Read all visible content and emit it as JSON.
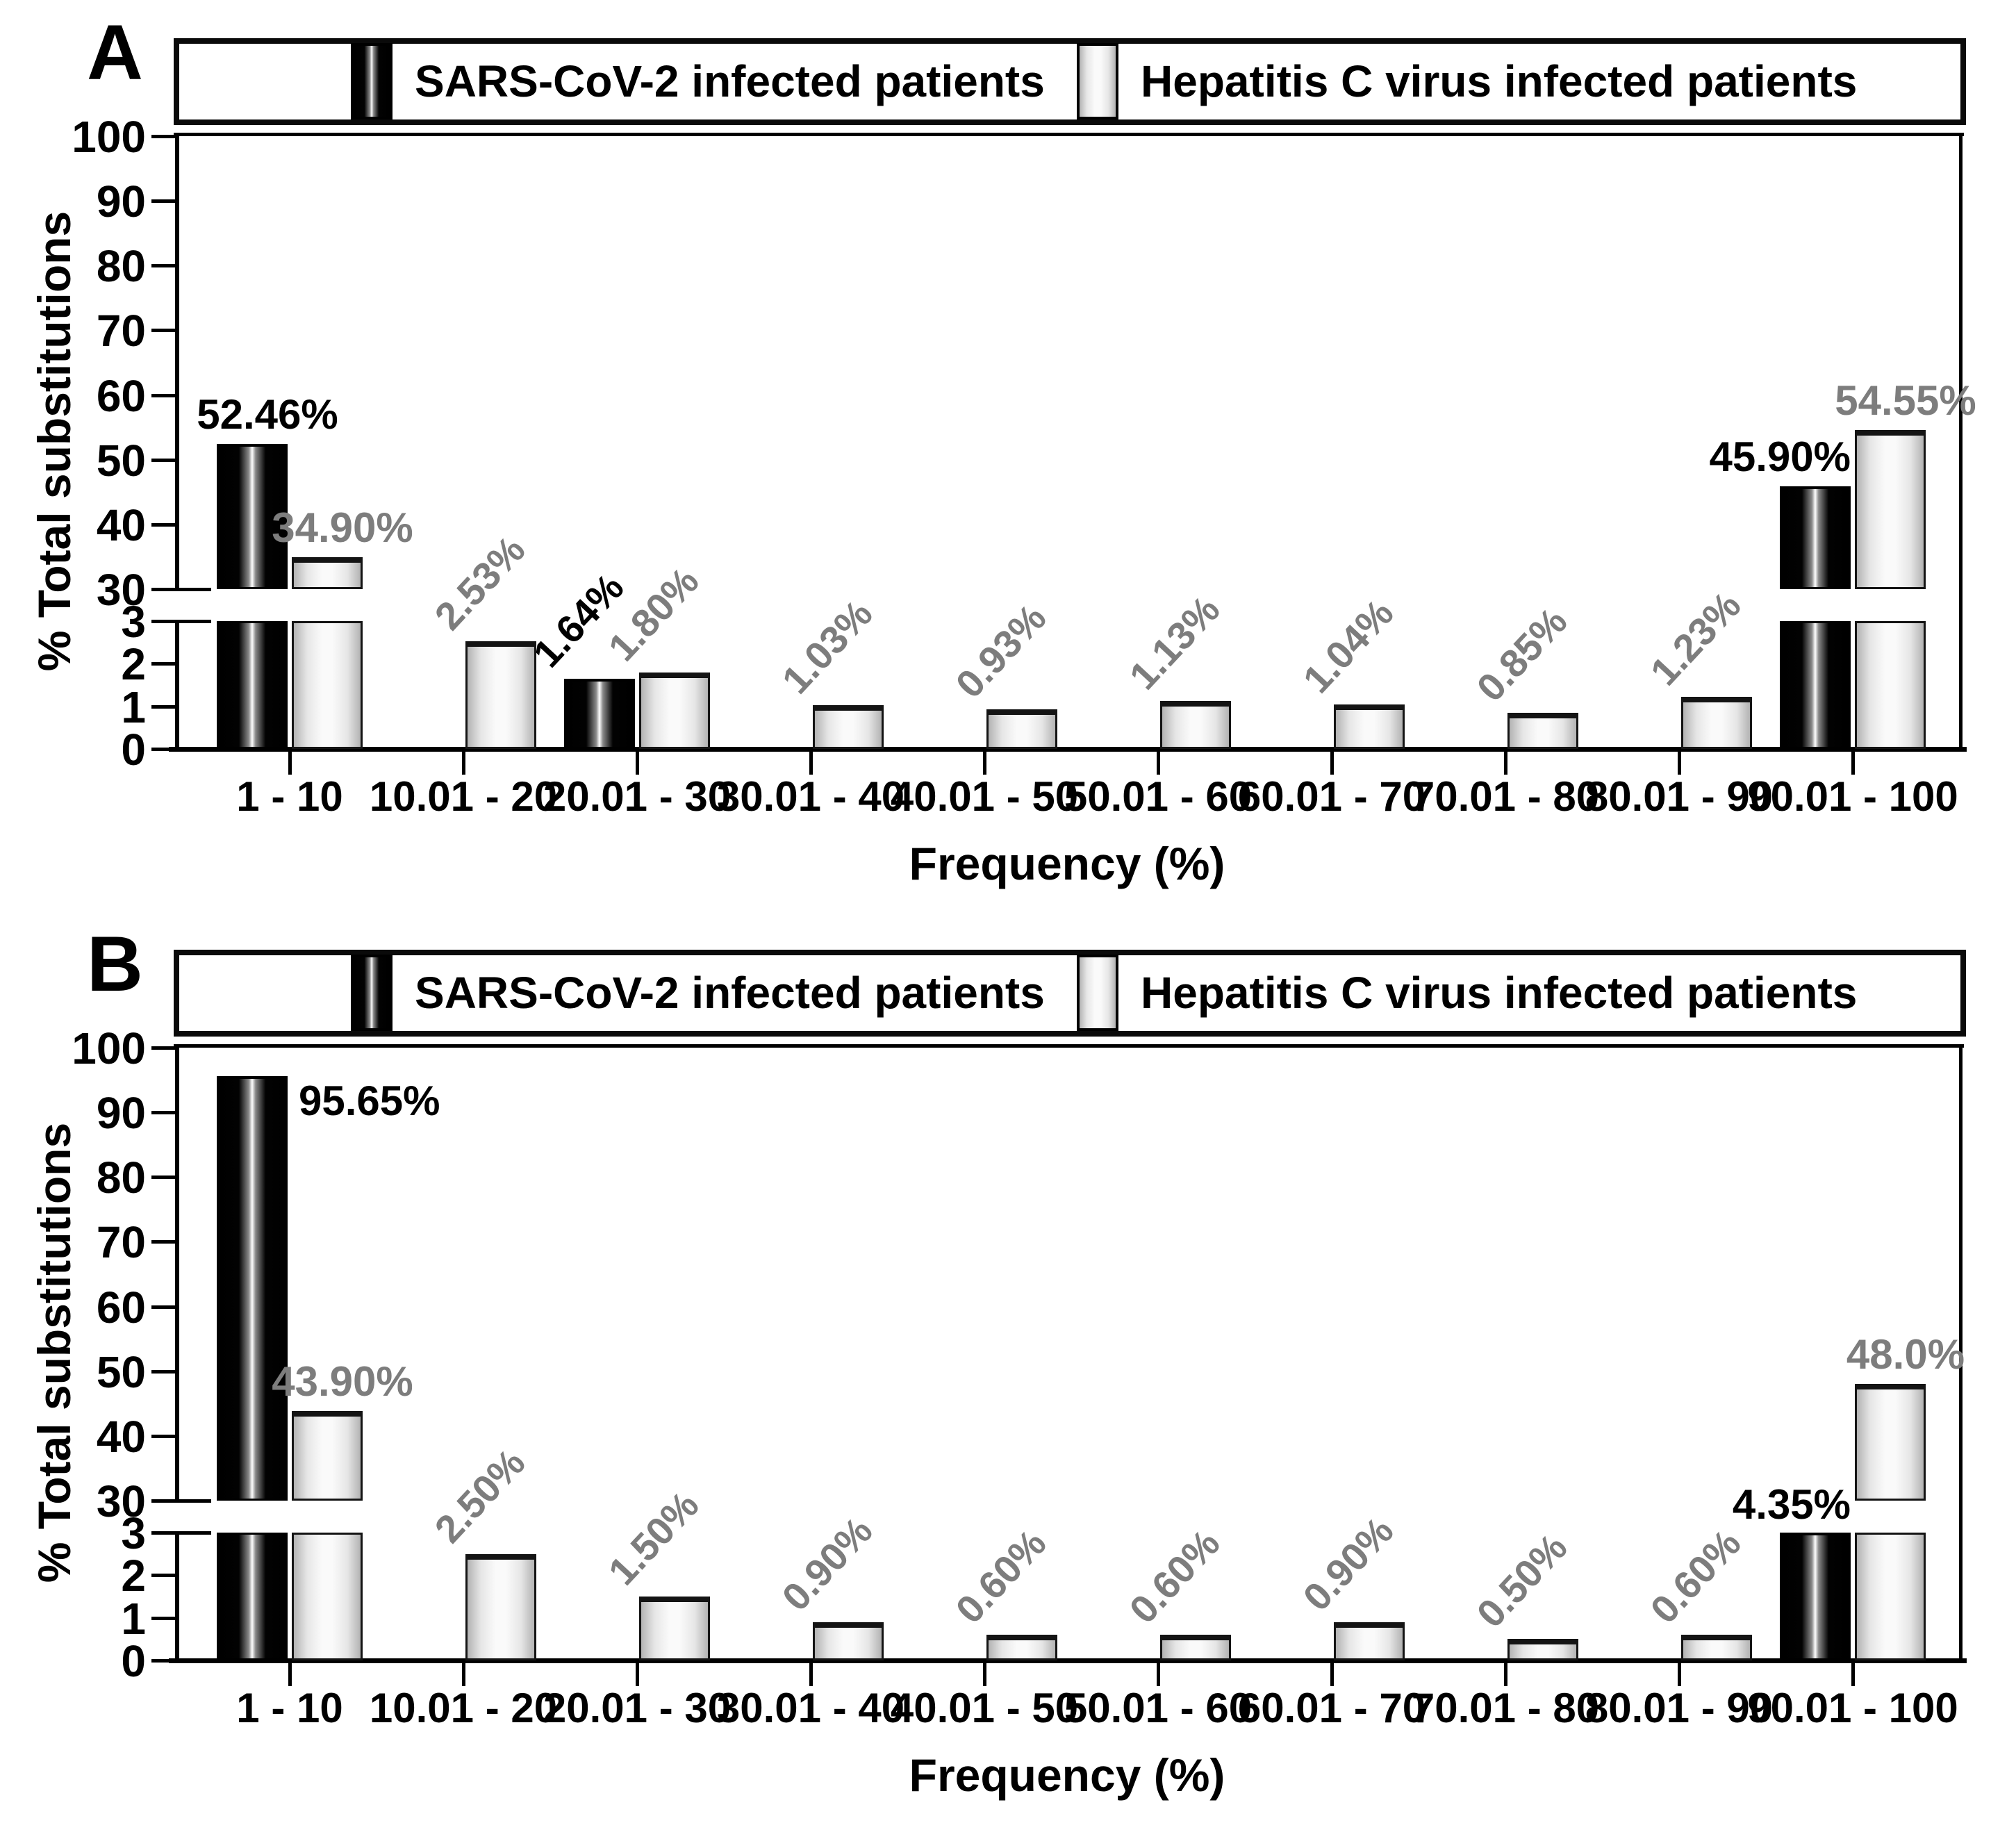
{
  "figure": {
    "panels": [
      {
        "letter": "A"
      },
      {
        "letter": "B"
      }
    ],
    "legend": [
      {
        "label": "SARS-CoV-2 infected patients",
        "swatch": "black-gradient-bar"
      },
      {
        "label": "Hepatitis C virus infected patients",
        "swatch": "light-gray-bar"
      }
    ],
    "y_axis_label": "% Total substitutions",
    "x_axis_label": "Frequency (%)",
    "y_ticks_upper": [
      "100",
      "90",
      "80",
      "70",
      "60",
      "50",
      "40",
      "30"
    ],
    "y_ticks_lower": [
      "3",
      "2",
      "1",
      "0"
    ],
    "colors": {
      "sars_bar": "#000000",
      "hcv_bar_light": "#fafafa",
      "hcv_bar_edge": "#b3b3b3",
      "value_label_gray": "#7d7d7d",
      "value_label_black": "#000000"
    }
  },
  "chart_data": [
    {
      "type": "bar",
      "panel": "A",
      "title": "",
      "xlabel": "Frequency (%)",
      "ylabel": "% Total substitutions",
      "grid": false,
      "legend_position": "top",
      "broken_axis": {
        "lower_range": [
          0,
          3
        ],
        "upper_range": [
          30,
          100
        ]
      },
      "categories": [
        "1 - 10",
        "10.01 - 20",
        "20.01 - 30",
        "30.01 - 40",
        "40.01 - 50",
        "50.01 - 60",
        "60.01 - 70",
        "70.01 - 80",
        "80.01 - 90",
        "90.01 - 100"
      ],
      "series": [
        {
          "name": "SARS-CoV-2 infected patients",
          "values": [
            52.46,
            null,
            1.64,
            null,
            null,
            null,
            null,
            null,
            null,
            45.9
          ],
          "labels": [
            {
              "text": "52.46%",
              "placement": "above"
            },
            null,
            {
              "text": "1.64%",
              "placement": "rotated"
            },
            null,
            null,
            null,
            null,
            null,
            null,
            {
              "text": "45.90%",
              "placement": "above-right"
            }
          ]
        },
        {
          "name": "Hepatitis C virus infected patients",
          "values": [
            34.9,
            2.53,
            1.8,
            1.03,
            0.93,
            1.13,
            1.04,
            0.85,
            1.23,
            54.55
          ],
          "labels": [
            {
              "text": "34.90%",
              "placement": "above"
            },
            {
              "text": "2.53%",
              "placement": "rotated"
            },
            {
              "text": "1.80%",
              "placement": "rotated"
            },
            {
              "text": "1.03%",
              "placement": "rotated"
            },
            {
              "text": "0.93%",
              "placement": "rotated"
            },
            {
              "text": "1.13%",
              "placement": "rotated"
            },
            {
              "text": "1.04%",
              "placement": "rotated"
            },
            {
              "text": "0.85%",
              "placement": "rotated"
            },
            {
              "text": "1.23%",
              "placement": "rotated"
            },
            {
              "text": "54.55%",
              "placement": "above"
            }
          ]
        }
      ]
    },
    {
      "type": "bar",
      "panel": "B",
      "title": "",
      "xlabel": "Frequency (%)",
      "ylabel": "% Total substitutions",
      "grid": false,
      "legend_position": "top",
      "broken_axis": {
        "lower_range": [
          0,
          3
        ],
        "upper_range": [
          30,
          100
        ]
      },
      "categories": [
        "1 - 10",
        "10.01 - 20",
        "20.01 - 30",
        "30.01 - 40",
        "40.01 - 50",
        "50.01 - 60",
        "60.01 - 70",
        "70.01 - 80",
        "80.01 - 90",
        "90.01 - 100"
      ],
      "series": [
        {
          "name": "SARS-CoV-2 infected patients",
          "values": [
            95.65,
            null,
            null,
            null,
            null,
            null,
            null,
            null,
            null,
            4.35
          ],
          "labels": [
            {
              "text": "95.65%",
              "placement": "beside"
            },
            null,
            null,
            null,
            null,
            null,
            null,
            null,
            null,
            {
              "text": "4.35%",
              "placement": "band"
            }
          ]
        },
        {
          "name": "Hepatitis C virus infected patients",
          "values": [
            43.9,
            2.5,
            1.5,
            0.9,
            0.6,
            0.6,
            0.9,
            0.5,
            0.6,
            48.0
          ],
          "labels": [
            {
              "text": "43.90%",
              "placement": "above"
            },
            {
              "text": "2.50%",
              "placement": "rotated"
            },
            {
              "text": "1.50%",
              "placement": "rotated"
            },
            {
              "text": "0.90%",
              "placement": "rotated"
            },
            {
              "text": "0.60%",
              "placement": "rotated"
            },
            {
              "text": "0.60%",
              "placement": "rotated"
            },
            {
              "text": "0.90%",
              "placement": "rotated"
            },
            {
              "text": "0.50%",
              "placement": "rotated"
            },
            {
              "text": "0.60%",
              "placement": "rotated"
            },
            {
              "text": "48.0%",
              "placement": "above"
            }
          ]
        }
      ]
    }
  ]
}
